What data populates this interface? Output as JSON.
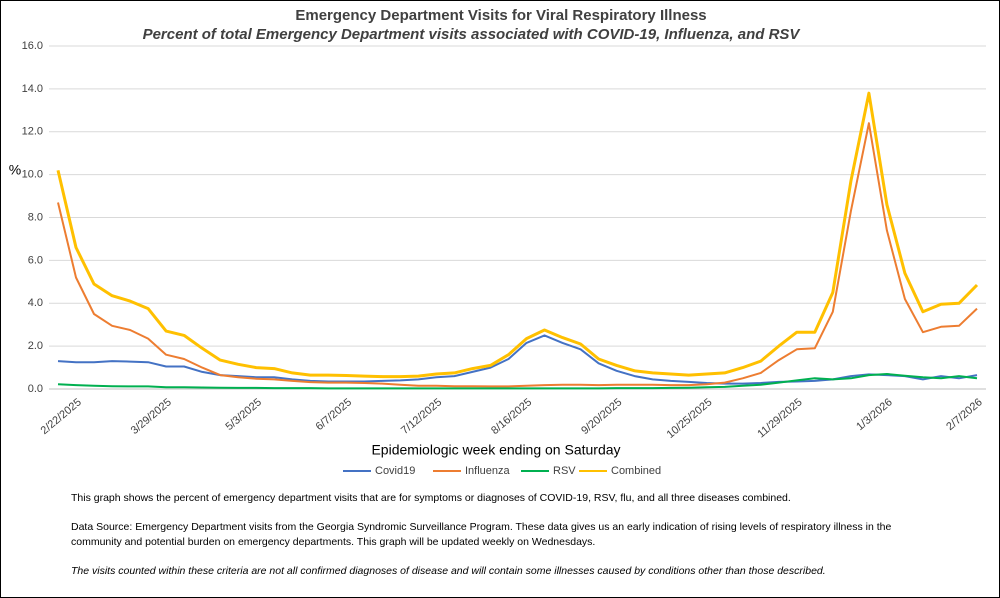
{
  "chart_data": {
    "type": "line",
    "title": "Emergency Department Visits for Viral Respiratory Illness",
    "subtitle": "Percent of total Emergency Department visits associated with COVID-19, Influenza, and RSV",
    "y_label": "%",
    "x_label": "Epidemiologic week ending on Saturday",
    "categories": [
      null,
      "2/22/2025",
      null,
      null,
      null,
      null,
      "3/29/2025",
      null,
      null,
      null,
      null,
      "5/3/2025",
      null,
      null,
      null,
      null,
      "6/7/2025",
      null,
      null,
      null,
      null,
      "7/12/2025",
      null,
      null,
      null,
      null,
      "8/16/2025",
      null,
      null,
      null,
      null,
      "9/20/2025",
      null,
      null,
      null,
      null,
      "10/25/2025",
      null,
      null,
      null,
      null,
      "11/29/2025",
      null,
      null,
      null,
      null,
      "1/3/2026",
      null,
      null,
      null,
      null,
      "2/7/2026"
    ],
    "series": [
      {
        "name": "Covid19",
        "color": "#4472c4",
        "values": [
          1.3,
          1.25,
          1.25,
          1.3,
          1.28,
          1.25,
          1.05,
          1.05,
          0.8,
          0.65,
          0.6,
          0.55,
          0.55,
          0.45,
          0.38,
          0.35,
          0.35,
          0.35,
          0.38,
          0.4,
          0.45,
          0.55,
          0.6,
          0.8,
          1.0,
          1.4,
          2.15,
          2.5,
          2.15,
          1.85,
          1.2,
          0.85,
          0.6,
          0.45,
          0.38,
          0.33,
          0.28,
          0.25,
          0.25,
          0.28,
          0.33,
          0.35,
          0.38,
          0.45,
          0.6,
          0.68,
          0.65,
          0.6,
          0.45,
          0.6,
          0.5,
          0.65
        ]
      },
      {
        "name": "Influenza",
        "color": "#ed7d31",
        "values": [
          8.7,
          5.2,
          3.5,
          2.95,
          2.75,
          2.35,
          1.6,
          1.4,
          1.0,
          0.65,
          0.55,
          0.48,
          0.45,
          0.38,
          0.32,
          0.3,
          0.3,
          0.28,
          0.25,
          0.2,
          0.15,
          0.15,
          0.13,
          0.13,
          0.12,
          0.12,
          0.15,
          0.18,
          0.2,
          0.2,
          0.18,
          0.2,
          0.2,
          0.2,
          0.18,
          0.18,
          0.22,
          0.3,
          0.5,
          0.75,
          1.35,
          1.85,
          1.9,
          3.6,
          8.3,
          12.4,
          7.4,
          4.2,
          2.65,
          2.9,
          2.95,
          3.75
        ]
      },
      {
        "name": "RSV",
        "color": "#00b050",
        "values": [
          0.22,
          0.18,
          0.15,
          0.13,
          0.12,
          0.12,
          0.08,
          0.08,
          0.07,
          0.06,
          0.05,
          0.05,
          0.04,
          0.04,
          0.04,
          0.03,
          0.03,
          0.03,
          0.03,
          0.03,
          0.03,
          0.03,
          0.03,
          0.03,
          0.03,
          0.03,
          0.03,
          0.03,
          0.03,
          0.03,
          0.03,
          0.04,
          0.04,
          0.04,
          0.05,
          0.06,
          0.08,
          0.1,
          0.15,
          0.2,
          0.3,
          0.4,
          0.5,
          0.45,
          0.5,
          0.65,
          0.7,
          0.62,
          0.55,
          0.5,
          0.6,
          0.5
        ]
      },
      {
        "name": "Combined",
        "color": "#ffc000",
        "values": [
          10.2,
          6.6,
          4.9,
          4.35,
          4.1,
          3.75,
          2.7,
          2.5,
          1.9,
          1.35,
          1.15,
          1.0,
          0.95,
          0.75,
          0.65,
          0.65,
          0.63,
          0.6,
          0.58,
          0.58,
          0.6,
          0.7,
          0.75,
          0.95,
          1.1,
          1.6,
          2.35,
          2.75,
          2.4,
          2.1,
          1.4,
          1.1,
          0.85,
          0.75,
          0.7,
          0.65,
          0.7,
          0.75,
          1.0,
          1.3,
          2.0,
          2.65,
          2.65,
          4.5,
          9.7,
          13.8,
          8.6,
          5.4,
          3.6,
          3.95,
          4.0,
          4.85
        ]
      }
    ],
    "ylim": [
      0,
      16
    ],
    "yticks": [
      {
        "value": 0,
        "label": "0.0"
      },
      {
        "value": 2,
        "label": "2.0"
      },
      {
        "value": 4,
        "label": "4.0"
      },
      {
        "value": 6,
        "label": "6.0"
      },
      {
        "value": 8,
        "label": "8.0"
      },
      {
        "value": 10,
        "label": "10.0"
      },
      {
        "value": 12,
        "label": "12.0"
      },
      {
        "value": 14,
        "label": "14.0"
      },
      {
        "value": 16,
        "label": "16.0"
      }
    ],
    "grid": true
  },
  "notes": [
    "This graph shows the percent of emergency department visits that are for symptoms or diagnoses of COVID-19, RSV, flu, and all three diseases combined.",
    "Data Source: Emergency Department visits from the Georgia Syndromic Surveillance Program. These data gives us an early indication of rising levels of respiratory illness in the community and potential burden on emergency departments. This graph will be updated weekly on Wednesdays.",
    "The visits counted within these criteria are not all confirmed diagnoses of disease and will contain some illnesses caused by conditions other than those described."
  ]
}
